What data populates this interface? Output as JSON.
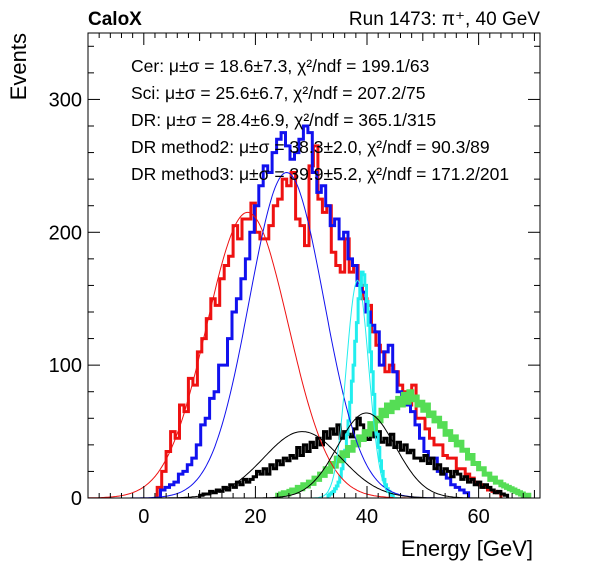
{
  "chart_data": {
    "type": "histogram",
    "brand": "CaloX",
    "run_label": "Run 1473: π⁺, 40 GeV",
    "xlabel": "Energy [GeV]",
    "ylabel": "Events",
    "xlim": [
      -10,
      71
    ],
    "ylim": [
      0,
      350
    ],
    "x_ticks": [
      0,
      20,
      40,
      60
    ],
    "y_ticks": [
      0,
      100,
      200,
      300
    ],
    "legend_position": "top",
    "stats": [
      {
        "label": "Cer:",
        "text": "μ±σ = 18.6±7.3, χ²/ndf = 199.1/63",
        "color": "#ee1111"
      },
      {
        "label": "Sci:",
        "text": "μ±σ = 25.6±6.7, χ²/ndf = 207.2/75",
        "color": "#1111ee"
      },
      {
        "label": "DR:",
        "text": "μ±σ = 28.4±6.9, χ²/ndf = 365.1/315",
        "color": "#000000"
      },
      {
        "label": "DR method2:",
        "text": "μ±σ = 38.3±2.0, χ²/ndf = 90.3/89",
        "color": "#22eeee"
      },
      {
        "label": "DR method3:",
        "text": "μ±σ = 39.9±5.2, χ²/ndf = 171.2/201",
        "color": "#55dd55"
      }
    ],
    "series": [
      {
        "color": "#ee1111",
        "width": 3,
        "binw": 0.8,
        "x0": 2.4,
        "values": [
          8,
          20,
          35,
          50,
          45,
          70,
          65,
          90,
          85,
          110,
          120,
          135,
          150,
          145,
          165,
          175,
          182,
          205,
          195,
          210,
          210,
          222,
          200,
          195,
          195,
          205,
          220,
          225,
          240,
          235,
          245,
          210,
          205,
          190,
          250,
          265,
          225,
          215,
          220,
          185,
          175,
          170,
          195,
          170,
          175,
          160,
          150,
          145,
          125,
          115,
          110,
          95,
          100,
          95,
          85,
          80,
          70,
          85,
          60,
          60,
          52,
          45,
          40,
          40,
          32,
          30,
          30,
          22,
          22,
          18,
          15,
          12,
          10,
          8,
          6,
          5,
          4
        ]
      },
      {
        "color": "#1111ee",
        "width": 3,
        "binw": 0.8,
        "x0": 3.0,
        "values": [
          6,
          8,
          10,
          12,
          18,
          20,
          25,
          30,
          40,
          55,
          60,
          75,
          80,
          100,
          100,
          120,
          140,
          150,
          165,
          180,
          200,
          220,
          235,
          250,
          245,
          260,
          270,
          275,
          265,
          255,
          260,
          270,
          280,
          275,
          245,
          230,
          235,
          220,
          205,
          210,
          195,
          200,
          180,
          175,
          160,
          155,
          140,
          130,
          125,
          100,
          110,
          115,
          95,
          80,
          70,
          70,
          65,
          55,
          45,
          35,
          30,
          30,
          20,
          18,
          15,
          10,
          8,
          6,
          4
        ]
      },
      {
        "color": "#000000",
        "width": 3,
        "binw": 0.6,
        "x0": 10.0,
        "values": [
          2,
          3,
          3,
          5,
          4,
          6,
          5,
          8,
          6,
          10,
          8,
          12,
          10,
          14,
          12,
          14,
          16,
          20,
          18,
          22,
          18,
          25,
          22,
          28,
          25,
          30,
          28,
          32,
          30,
          38,
          32,
          40,
          35,
          42,
          38,
          45,
          40,
          50,
          45,
          52,
          48,
          55,
          45,
          50,
          48,
          46,
          52,
          60,
          55,
          48,
          44,
          52,
          46,
          50,
          42,
          45,
          40,
          48,
          38,
          42,
          36,
          40,
          34,
          36,
          30,
          30,
          28,
          32,
          26,
          30,
          22,
          25,
          18,
          22,
          20,
          16,
          20,
          18,
          14,
          16,
          12,
          14,
          10,
          12,
          8,
          10,
          8,
          6,
          4,
          5,
          3,
          2
        ]
      },
      {
        "color": "#22eeee",
        "width": 3,
        "binw": 0.3,
        "x0": 33.0,
        "values": [
          2,
          3,
          4,
          5,
          7,
          9,
          12,
          16,
          22,
          28,
          36,
          48,
          58,
          72,
          88,
          100,
          118,
          132,
          150,
          160,
          170,
          168,
          160,
          148,
          130,
          110,
          95,
          78,
          60,
          48,
          38,
          28,
          20,
          14,
          10,
          7,
          5,
          3,
          2
        ]
      },
      {
        "color": "#55dd55",
        "width": 5,
        "binw": 0.5,
        "x0": 24.0,
        "values": [
          2,
          3,
          4,
          3,
          5,
          6,
          5,
          8,
          7,
          10,
          9,
          12,
          11,
          15,
          14,
          18,
          17,
          22,
          20,
          26,
          24,
          30,
          28,
          34,
          32,
          38,
          36,
          42,
          40,
          46,
          44,
          50,
          48,
          56,
          52,
          60,
          58,
          66,
          62,
          70,
          65,
          72,
          68,
          75,
          70,
          78,
          72,
          80,
          74,
          76,
          70,
          72,
          66,
          70,
          62,
          64,
          58,
          60,
          54,
          56,
          48,
          50,
          44,
          46,
          40,
          42,
          36,
          36,
          30,
          32,
          26,
          26,
          22,
          22,
          18,
          18,
          14,
          15,
          12,
          12,
          10,
          9,
          8,
          7,
          6,
          5,
          4,
          3,
          2,
          2
        ]
      }
    ],
    "fits": [
      {
        "color": "#ee1111",
        "mean": 18.6,
        "sigma": 7.3,
        "amp": 215
      },
      {
        "color": "#1111ee",
        "mean": 25.6,
        "sigma": 6.7,
        "amp": 245
      },
      {
        "color": "#000000",
        "mean": 28.4,
        "sigma": 6.9,
        "amp": 50
      },
      {
        "color": "#22eeee",
        "mean": 38.3,
        "sigma": 2.0,
        "amp": 164
      },
      {
        "color": "#000000",
        "mean": 39.9,
        "sigma": 5.2,
        "amp": 64
      }
    ]
  }
}
